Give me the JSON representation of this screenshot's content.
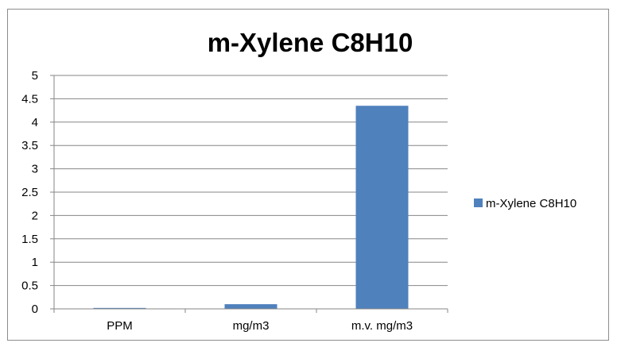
{
  "chart_data": {
    "type": "bar",
    "title": "m-Xylene  C8H10",
    "xlabel": "",
    "ylabel": "",
    "categories": [
      "PPM",
      "mg/m3",
      "m.v. mg/m3"
    ],
    "series": [
      {
        "name": "m-Xylene  C8H10",
        "values": [
          0.02,
          0.1,
          4.35
        ],
        "color": "#4f81bd"
      }
    ],
    "ylim": [
      0,
      5
    ],
    "yticks": [
      "0",
      "0.5",
      "1",
      "1.5",
      "2",
      "2.5",
      "3",
      "3.5",
      "4",
      "4.5",
      "5"
    ],
    "grid": true,
    "legend": "right"
  }
}
